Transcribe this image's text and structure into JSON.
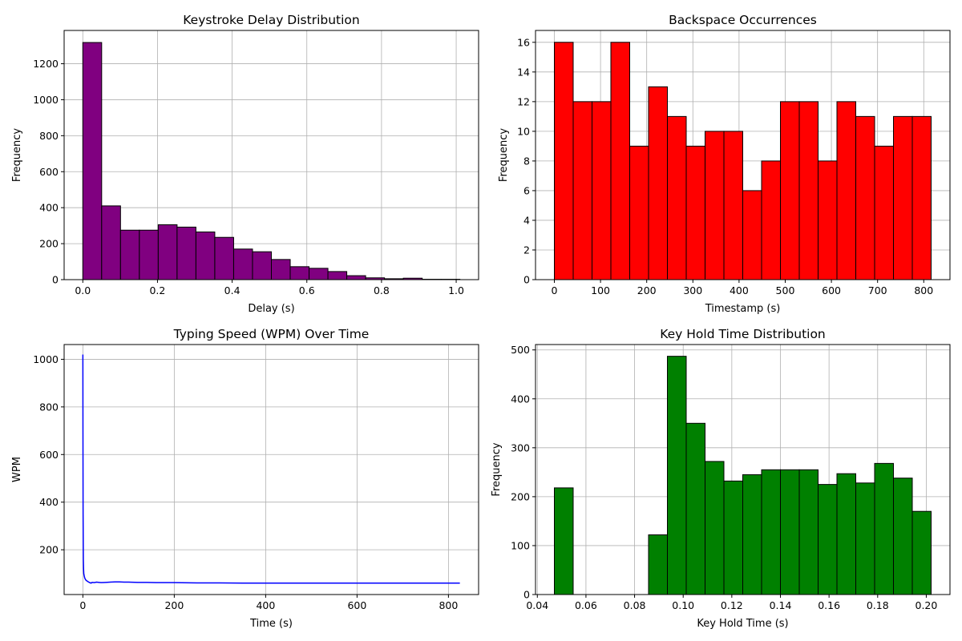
{
  "chart_data": [
    {
      "type": "bar",
      "title": "Keystroke Delay Distribution",
      "xlabel": "Delay (s)",
      "ylabel": "Frequency",
      "bin_edges": [
        0.0,
        0.0505,
        0.101,
        0.1515,
        0.202,
        0.2525,
        0.303,
        0.3535,
        0.404,
        0.4545,
        0.505,
        0.5555,
        0.606,
        0.6565,
        0.707,
        0.7575,
        0.808,
        0.8585,
        0.909,
        0.9595,
        1.01
      ],
      "values": [
        1318,
        410,
        275,
        275,
        305,
        292,
        265,
        235,
        170,
        155,
        112,
        72,
        63,
        45,
        22,
        10,
        5,
        8,
        2,
        2
      ],
      "xlim": [
        -0.05,
        1.06
      ],
      "ylim": [
        0,
        1385
      ],
      "xticks": [
        0.0,
        0.2,
        0.4,
        0.6,
        0.8,
        1.0
      ],
      "xtick_labels": [
        "0.0",
        "0.2",
        "0.4",
        "0.6",
        "0.8",
        "1.0"
      ],
      "yticks": [
        0,
        200,
        400,
        600,
        800,
        1000,
        1200
      ],
      "ytick_labels": [
        "0",
        "200",
        "400",
        "600",
        "800",
        "1000",
        "1200"
      ],
      "color": "#800080",
      "grid": true
    },
    {
      "type": "bar",
      "title": "Backspace Occurrences",
      "xlabel": "Timestamp (s)",
      "ylabel": "Frequency",
      "bin_edges": [
        0,
        40.8,
        81.6,
        122.4,
        163.2,
        204,
        244.8,
        285.6,
        326.4,
        367.2,
        408,
        448.8,
        489.6,
        530.4,
        571.2,
        612,
        652.8,
        693.6,
        734.4,
        775.2,
        816
      ],
      "values": [
        16,
        12,
        12,
        16,
        9,
        13,
        11,
        9,
        10,
        10,
        6,
        8,
        12,
        12,
        8,
        12,
        11,
        9,
        11,
        11
      ],
      "xlim": [
        -40.8,
        856.8
      ],
      "ylim": [
        0,
        16.8
      ],
      "xticks": [
        0,
        100,
        200,
        300,
        400,
        500,
        600,
        700,
        800
      ],
      "xtick_labels": [
        "0",
        "100",
        "200",
        "300",
        "400",
        "500",
        "600",
        "700",
        "800"
      ],
      "yticks": [
        0,
        2,
        4,
        6,
        8,
        10,
        12,
        14,
        16
      ],
      "ytick_labels": [
        "0",
        "2",
        "4",
        "6",
        "8",
        "10",
        "12",
        "14",
        "16"
      ],
      "color": "#ff0000",
      "grid": true
    },
    {
      "type": "line",
      "title": "Typing Speed (WPM) Over Time",
      "xlabel": "Time (s)",
      "ylabel": "WPM",
      "series": [
        {
          "x": [
            0,
            0.2,
            0.5,
            1,
            1.5,
            2,
            3,
            4,
            5,
            6,
            8,
            10,
            12,
            15,
            18,
            20,
            25,
            30,
            35,
            40,
            50,
            60,
            70,
            80,
            90,
            100,
            120,
            140,
            160,
            200,
            250,
            300,
            350,
            400,
            450,
            500,
            550,
            600,
            650,
            700,
            750,
            800,
            825
          ],
          "y": [
            1020,
            700,
            350,
            160,
            120,
            100,
            90,
            82,
            78,
            74,
            70,
            68,
            65,
            62,
            60,
            63,
            62,
            64,
            63,
            62,
            63,
            64,
            65,
            65,
            64,
            64,
            63,
            63,
            62,
            62,
            61,
            61,
            60,
            60,
            60,
            60,
            60,
            60,
            60,
            60,
            60,
            60,
            60
          ]
        }
      ],
      "xlim": [
        -41,
        866
      ],
      "ylim": [
        12,
        1062
      ],
      "xticks": [
        0,
        200,
        400,
        600,
        800
      ],
      "xtick_labels": [
        "0",
        "200",
        "400",
        "600",
        "800"
      ],
      "yticks": [
        200,
        400,
        600,
        800,
        1000
      ],
      "ytick_labels": [
        "200",
        "400",
        "600",
        "800",
        "1000"
      ],
      "color": "#0000ff",
      "grid": true
    },
    {
      "type": "bar",
      "title": "Key Hold Time Distribution",
      "xlabel": "Key Hold Time (s)",
      "ylabel": "Frequency",
      "bin_edges": [
        0.047,
        0.05475,
        0.0625,
        0.07025,
        0.078,
        0.08575,
        0.0935,
        0.10125,
        0.109,
        0.11675,
        0.1245,
        0.13225,
        0.14,
        0.14775,
        0.1555,
        0.16325,
        0.171,
        0.17875,
        0.1865,
        0.19425,
        0.202
      ],
      "values": [
        218,
        0,
        0,
        0,
        0,
        122,
        487,
        350,
        272,
        232,
        245,
        255,
        255,
        255,
        225,
        247,
        228,
        268,
        238,
        170
      ],
      "xlim": [
        0.03925,
        0.20975
      ],
      "ylim": [
        0,
        511
      ],
      "xticks": [
        0.04,
        0.06,
        0.08,
        0.1,
        0.12,
        0.14,
        0.16,
        0.18,
        0.2
      ],
      "xtick_labels": [
        "0.04",
        "0.06",
        "0.08",
        "0.10",
        "0.12",
        "0.14",
        "0.16",
        "0.18",
        "0.20"
      ],
      "yticks": [
        0,
        100,
        200,
        300,
        400,
        500
      ],
      "ytick_labels": [
        "0",
        "100",
        "200",
        "300",
        "400",
        "500"
      ],
      "color": "#008000",
      "grid": true
    }
  ]
}
